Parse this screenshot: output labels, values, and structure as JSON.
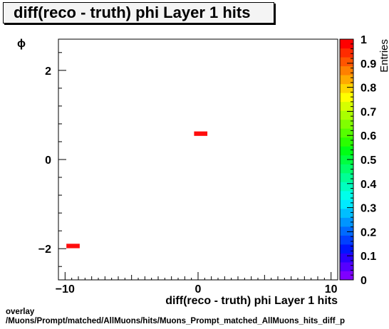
{
  "chart_data": {
    "type": "heatmap",
    "title": "diff(reco - truth) phi Layer 1 hits",
    "xlabel": "diff(reco - truth) phi Layer 1 hits",
    "ylabel": "ϕ",
    "zlabel": "Entries",
    "xlim": [
      -10.5,
      10.5
    ],
    "ylim": [
      -2.7,
      2.7
    ],
    "zlim": [
      0,
      1
    ],
    "x_ticks": [
      -10,
      0,
      10
    ],
    "y_ticks": [
      -2,
      0,
      2
    ],
    "z_ticks": [
      "0",
      "0.1",
      "0.2",
      "0.3",
      "0.4",
      "0.5",
      "0.6",
      "0.7",
      "0.8",
      "0.9",
      "1"
    ],
    "bins": [
      {
        "x0": -9.9,
        "x1": -8.9,
        "y0": -1.99,
        "y1": -1.89,
        "value": 1
      },
      {
        "x0": -0.3,
        "x1": 0.7,
        "y0": 0.53,
        "y1": 0.63,
        "value": 1
      }
    ],
    "colors": {
      "bin": "#ff0d0d",
      "palette": [
        "#7f00ff",
        "#5500ff",
        "#2b00ff",
        "#0015ff",
        "#0040ff",
        "#006aff",
        "#0095ff",
        "#00bfff",
        "#00eaff",
        "#00ffea",
        "#00ffbf",
        "#00ff95",
        "#00ff6a",
        "#00ff40",
        "#00ff15",
        "#2bff00",
        "#55ff00",
        "#80ff00",
        "#aaff00",
        "#d5ff00",
        "#ffff00",
        "#ffd500",
        "#ffaa00",
        "#ff8000",
        "#ff5500",
        "#ff2b00",
        "#ff0000"
      ]
    }
  },
  "footer": {
    "line1": "overlay",
    "line2": "/Muons/Prompt/matched/AllMuons/hits/Muons_Prompt_matched_AllMuons_hits_diff_p"
  }
}
